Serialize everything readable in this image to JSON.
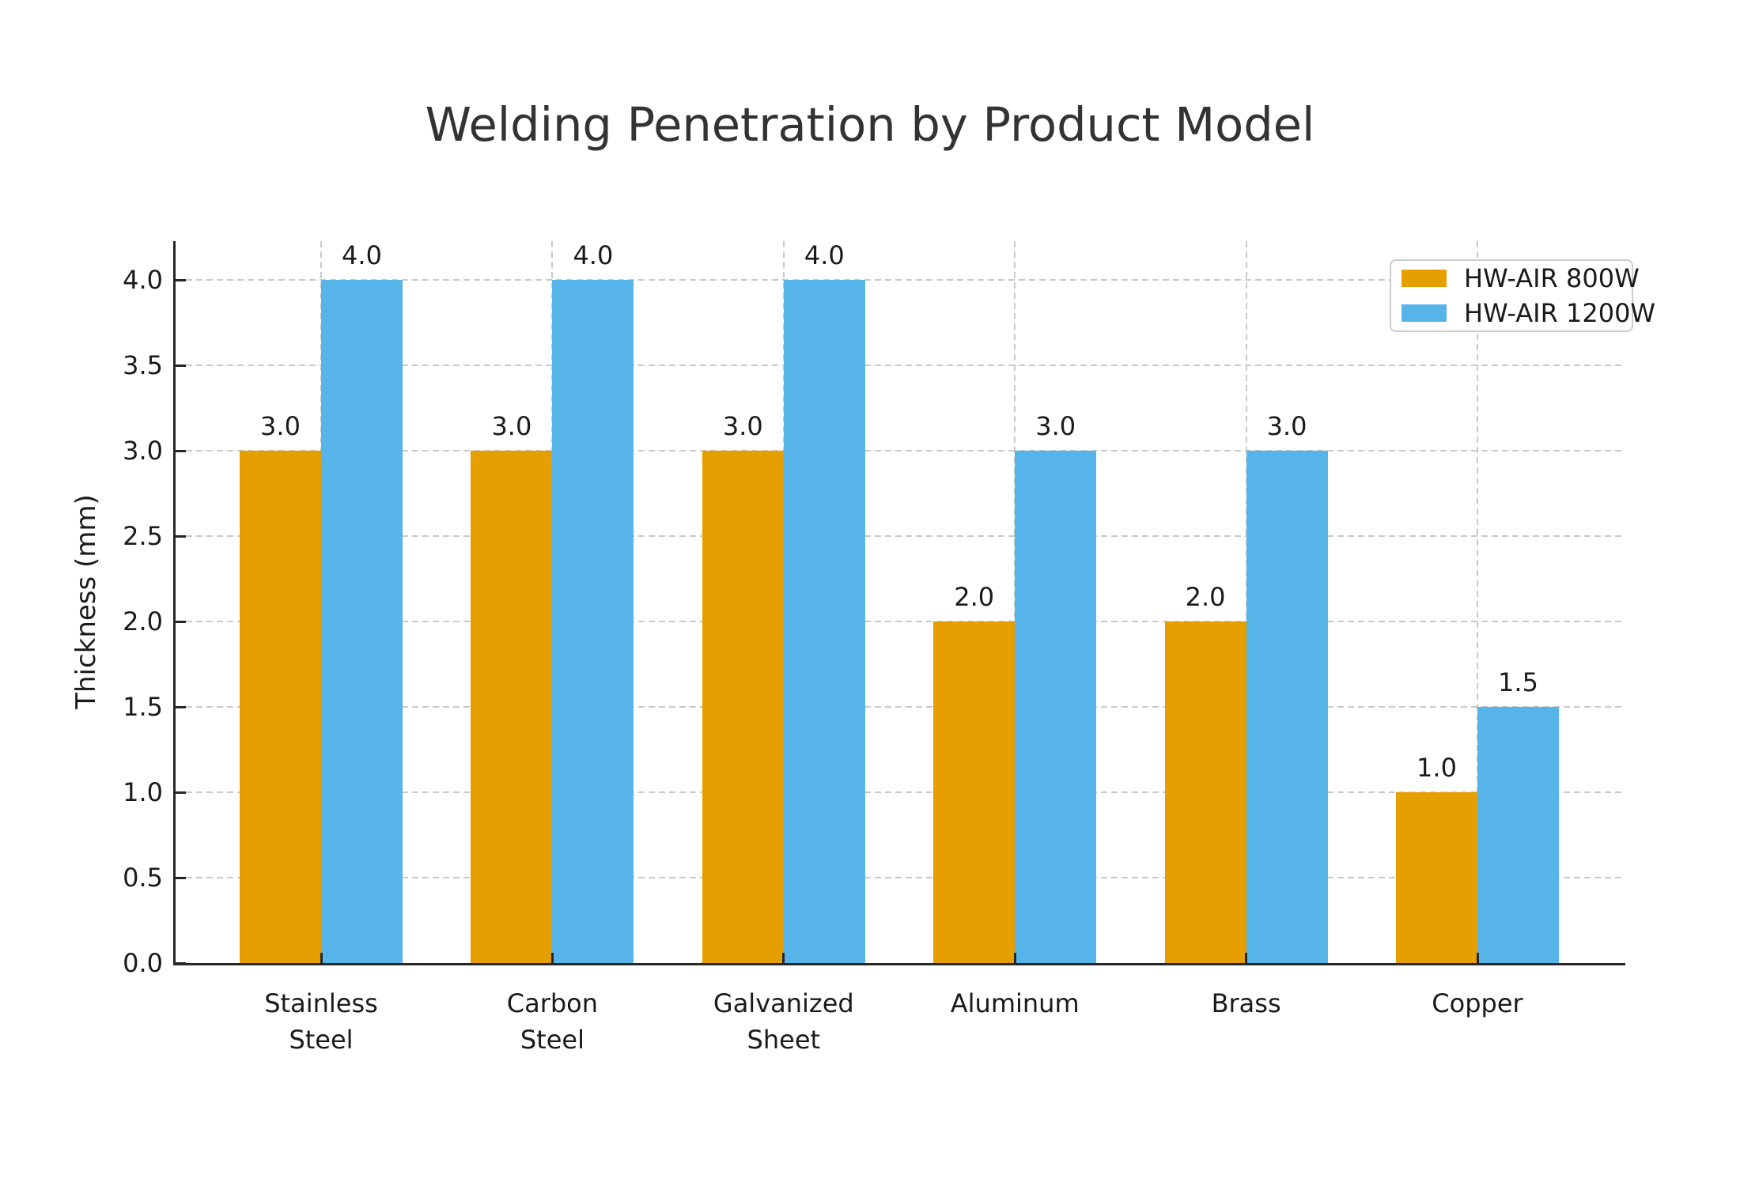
{
  "title": "Welding Penetration by Product Model",
  "chart_data": {
    "type": "bar",
    "title": "Welding Penetration by Product Model",
    "categories": [
      "Stainless Steel",
      "Carbon Steel",
      "Galvanized Sheet",
      "Aluminum",
      "Brass",
      "Copper"
    ],
    "category_lines": [
      [
        "Stainless",
        "Steel"
      ],
      [
        "Carbon",
        "Steel"
      ],
      [
        "Galvanized",
        "Sheet"
      ],
      [
        "Aluminum"
      ],
      [
        "Brass"
      ],
      [
        "Copper"
      ]
    ],
    "series": [
      {
        "name": "HW-AIR 800W",
        "color": "#E69F00",
        "values": [
          3.0,
          3.0,
          3.0,
          2.0,
          2.0,
          1.0
        ]
      },
      {
        "name": "HW-AIR 1200W",
        "color": "#56B4E9",
        "values": [
          4.0,
          4.0,
          4.0,
          3.0,
          3.0,
          1.5
        ]
      }
    ],
    "xlabel": "",
    "ylabel": "Thickness (mm)",
    "ylim": [
      0.0,
      4.2
    ],
    "yticks": [
      0.0,
      0.5,
      1.0,
      1.5,
      2.0,
      2.5,
      3.0,
      3.5,
      4.0
    ],
    "ytick_labels": [
      "0.0",
      "0.5",
      "1.0",
      "1.5",
      "2.0",
      "2.5",
      "3.0",
      "3.5",
      "4.0"
    ],
    "grid": "dashed",
    "grid_color": "#c9c9c9",
    "value_labels": true,
    "value_label_format": "1-decimal",
    "legend": {
      "position": "upper right",
      "entries": [
        "HW-AIR 800W",
        "HW-AIR 1200W"
      ]
    },
    "axis_color": "#262626",
    "text_color": "#1a1a1a",
    "title_color": "#333333",
    "background": "#ffffff"
  }
}
